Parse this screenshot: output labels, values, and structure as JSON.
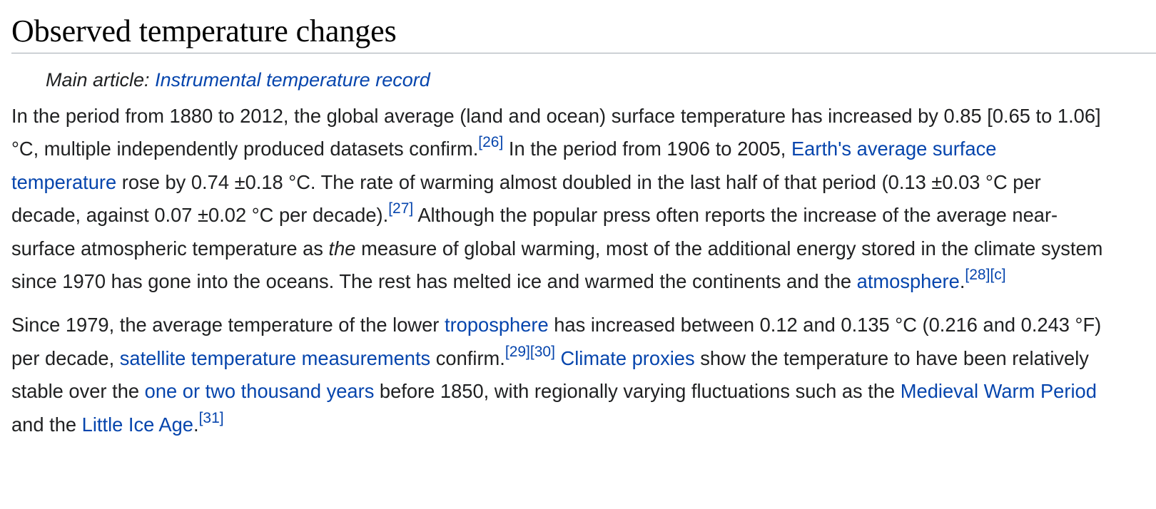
{
  "heading": "Observed temperature changes",
  "hatnote": {
    "prefix": "Main article: ",
    "link": "Instrumental temperature record"
  },
  "p1": {
    "t1": "In the period from 1880 to 2012, the global average (land and ocean) surface temperature has increased by 0.85 [0.65 to 1.06] °C, multiple independently produced datasets confirm.",
    "ref26": "[26]",
    "t2": " In the period from 1906 to 2005, ",
    "link_surface_temp": "Earth's average surface temperature",
    "t3": " rose by 0.74 ±0.18 °C. The rate of warming almost doubled in the last half of that period (0.13 ±0.03 °C per decade, against 0.07 ±0.02 °C per decade).",
    "ref27": "[27]",
    "t4": " Although the popular press often reports the increase of the average near-surface atmospheric temperature as ",
    "em_the": "the",
    "t5": " measure of global warming, most of the additional energy stored in the climate system since 1970 has gone into the oceans. The rest has melted ice and warmed the continents and the ",
    "link_atmosphere": "atmosphere",
    "t6": ".",
    "ref28": "[28]",
    "refc": "[c]"
  },
  "p2": {
    "t1": "Since 1979, the average temperature of the lower ",
    "link_troposphere": "troposphere",
    "t2": " has increased between 0.12 and 0.135 °C (0.216 and 0.243 °F) per decade, ",
    "link_satellite": "satellite temperature measurements",
    "t3": " confirm.",
    "ref29": "[29]",
    "ref30": "[30]",
    "t4": " ",
    "link_proxies": "Climate proxies",
    "t5": " show the temperature to have been relatively stable over the ",
    "link_years": "one or two thousand years",
    "t6": " before 1850, with regionally varying fluctuations such as the ",
    "link_medieval": "Medieval Warm Period",
    "t7": " and the ",
    "link_ice_age": "Little Ice Age",
    "t8": ".",
    "ref31": "[31]"
  },
  "colors": {
    "text": "#202122",
    "link": "#0645ad",
    "heading_rule": "#a2a9b1"
  }
}
